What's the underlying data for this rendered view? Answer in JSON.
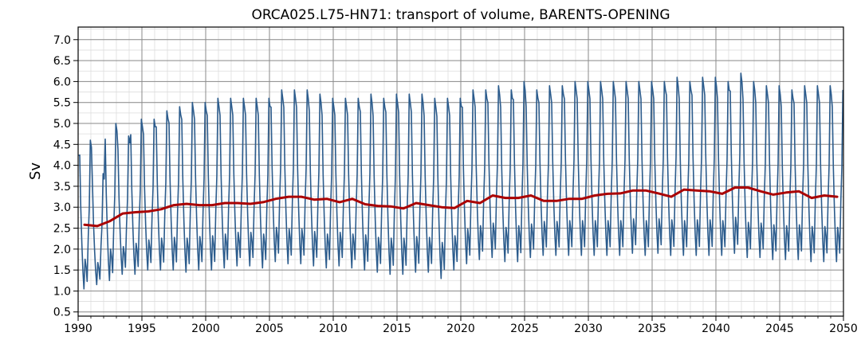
{
  "chart_data": {
    "type": "line",
    "title": "ORCA025.L75-HN71: transport of volume, BARENTS-OPENING",
    "xlabel": "",
    "ylabel": "Sv",
    "xlim": [
      1990,
      2050
    ],
    "ylim": [
      0.4,
      7.3
    ],
    "x_ticks": [
      1990,
      1995,
      2000,
      2005,
      2010,
      2015,
      2020,
      2025,
      2030,
      2035,
      2040,
      2045,
      2050
    ],
    "y_ticks": [
      0.5,
      1.0,
      1.5,
      2.0,
      2.5,
      3.0,
      3.5,
      4.0,
      4.5,
      5.0,
      5.5,
      6.0,
      6.5,
      7.0
    ],
    "x_minor_step": 1,
    "y_minor_step": 0.25,
    "grid": true,
    "legend": "none",
    "monthly_series": {
      "color": "#2b5b8c",
      "year_start": 1990,
      "year_end": 2050,
      "annual_peak": [
        4.6,
        3.8,
        5.0,
        4.7,
        5.1,
        5.1,
        5.3,
        5.4,
        5.5,
        5.5,
        5.6,
        5.6,
        5.6,
        5.6,
        5.6,
        5.8,
        5.8,
        5.8,
        5.7,
        5.6,
        5.6,
        5.6,
        5.7,
        5.6,
        5.7,
        5.7,
        5.7,
        5.6,
        5.6,
        5.6,
        5.8,
        5.8,
        5.9,
        5.8,
        6.0,
        5.8,
        5.9,
        5.9,
        6.0,
        6.0,
        6.0,
        6.0,
        6.0,
        6.0,
        6.0,
        6.0,
        6.1,
        6.0,
        6.1,
        6.1,
        6.0,
        6.2,
        6.0,
        5.9,
        5.9,
        5.8,
        5.9,
        5.9,
        5.9,
        5.8
      ],
      "annual_trough": [
        1.05,
        1.15,
        1.25,
        1.4,
        1.4,
        1.5,
        1.5,
        1.5,
        1.45,
        1.5,
        1.5,
        1.55,
        1.6,
        1.6,
        1.55,
        1.7,
        1.65,
        1.65,
        1.6,
        1.55,
        1.6,
        1.55,
        1.5,
        1.45,
        1.4,
        1.4,
        1.45,
        1.45,
        1.3,
        1.5,
        1.65,
        1.75,
        1.8,
        1.7,
        1.7,
        1.8,
        1.85,
        1.85,
        1.85,
        1.85,
        1.85,
        1.85,
        1.85,
        1.9,
        1.85,
        1.9,
        1.85,
        1.85,
        1.85,
        1.85,
        1.85,
        1.9,
        1.8,
        1.8,
        1.75,
        1.75,
        1.75,
        1.7,
        1.7,
        1.7
      ]
    },
    "annual_mean_series": {
      "color": "#aa0000",
      "x": [
        1990.5,
        1991.5,
        1992.5,
        1993.5,
        1994.5,
        1995.5,
        1996.5,
        1997.5,
        1998.5,
        1999.5,
        2000.5,
        2001.5,
        2002.5,
        2003.5,
        2004.5,
        2005.5,
        2006.5,
        2007.5,
        2008.5,
        2009.5,
        2010.5,
        2011.5,
        2012.5,
        2013.5,
        2014.5,
        2015.5,
        2016.5,
        2017.5,
        2018.5,
        2019.5,
        2020.5,
        2021.5,
        2022.5,
        2023.5,
        2024.5,
        2025.5,
        2026.5,
        2027.5,
        2028.5,
        2029.5,
        2030.5,
        2031.5,
        2032.5,
        2033.5,
        2034.5,
        2035.5,
        2036.5,
        2037.5,
        2038.5,
        2039.5,
        2040.5,
        2041.5,
        2042.5,
        2043.5,
        2044.5,
        2045.5,
        2046.5,
        2047.5,
        2048.5,
        2049.5
      ],
      "y": [
        2.58,
        2.55,
        2.67,
        2.85,
        2.88,
        2.9,
        2.95,
        3.05,
        3.08,
        3.05,
        3.05,
        3.1,
        3.1,
        3.08,
        3.12,
        3.2,
        3.25,
        3.25,
        3.18,
        3.2,
        3.12,
        3.2,
        3.07,
        3.03,
        3.02,
        2.97,
        3.1,
        3.05,
        3.0,
        2.98,
        3.15,
        3.1,
        3.28,
        3.22,
        3.22,
        3.28,
        3.15,
        3.15,
        3.2,
        3.2,
        3.28,
        3.32,
        3.33,
        3.4,
        3.4,
        3.33,
        3.25,
        3.42,
        3.4,
        3.38,
        3.32,
        3.47,
        3.47,
        3.38,
        3.3,
        3.35,
        3.38,
        3.22,
        3.28,
        3.25
      ]
    }
  }
}
